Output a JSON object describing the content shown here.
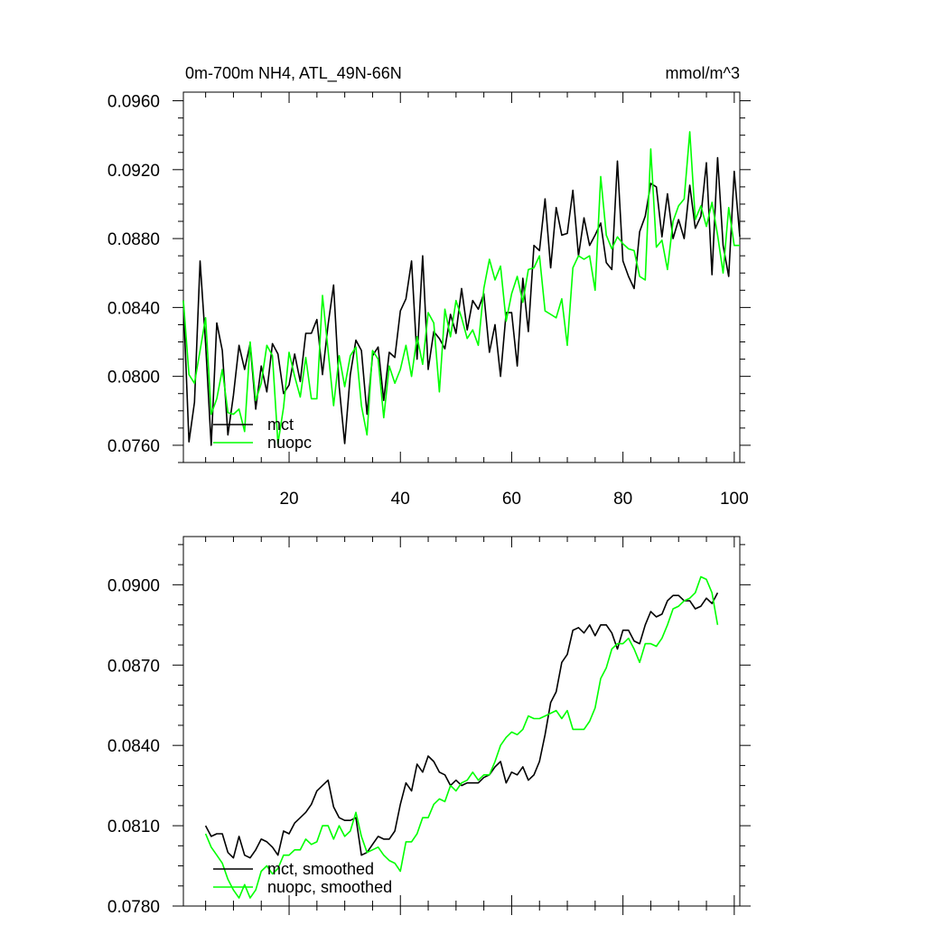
{
  "figure": {
    "title_left": "0m-700m NH4, ATL_49N-66N",
    "title_right": "mmol/m^3"
  },
  "chart_data": [
    {
      "type": "line",
      "name": "raw",
      "xlim": [
        1,
        101
      ],
      "ylim": [
        0.075,
        0.0965
      ],
      "x_major_ticks": [
        20,
        40,
        60,
        80,
        100
      ],
      "x_tick_labels": [
        "20",
        "40",
        "60",
        "80",
        "100"
      ],
      "x_labels_shown": true,
      "y_major_ticks": [
        0.076,
        0.08,
        0.084,
        0.088,
        0.092,
        0.096
      ],
      "y_tick_labels": [
        "0.0760",
        "0.0800",
        "0.0840",
        "0.0880",
        "0.0920",
        "0.0960"
      ],
      "legend_position": "bottom-left",
      "x": [
        1,
        2,
        3,
        4,
        5,
        6,
        7,
        8,
        9,
        10,
        11,
        12,
        13,
        14,
        15,
        16,
        17,
        18,
        19,
        20,
        21,
        22,
        23,
        24,
        25,
        26,
        27,
        28,
        29,
        30,
        31,
        32,
        33,
        34,
        35,
        36,
        37,
        38,
        39,
        40,
        41,
        42,
        43,
        44,
        45,
        46,
        47,
        48,
        49,
        50,
        51,
        52,
        53,
        54,
        55,
        56,
        57,
        58,
        59,
        60,
        61,
        62,
        63,
        64,
        65,
        66,
        67,
        68,
        69,
        70,
        71,
        72,
        73,
        74,
        75,
        76,
        77,
        78,
        79,
        80,
        81,
        82,
        83,
        84,
        85,
        86,
        87,
        88,
        89,
        90,
        91,
        92,
        93,
        94,
        95,
        96,
        97,
        98,
        99,
        100,
        101
      ],
      "series": [
        {
          "name": "mct",
          "color": "#000000",
          "values": [
            0.0844,
            0.0762,
            0.0785,
            0.0867,
            0.0819,
            0.076,
            0.0831,
            0.0815,
            0.0766,
            0.0789,
            0.0818,
            0.0804,
            0.0819,
            0.0781,
            0.0806,
            0.0791,
            0.0819,
            0.0813,
            0.079,
            0.0795,
            0.0813,
            0.0797,
            0.0825,
            0.0825,
            0.0833,
            0.0801,
            0.083,
            0.0853,
            0.0794,
            0.0761,
            0.0801,
            0.0821,
            0.0815,
            0.0778,
            0.0812,
            0.0817,
            0.0786,
            0.0814,
            0.0811,
            0.0838,
            0.0845,
            0.0867,
            0.081,
            0.087,
            0.0804,
            0.0826,
            0.0822,
            0.0816,
            0.0836,
            0.0825,
            0.0851,
            0.0827,
            0.0844,
            0.0839,
            0.0848,
            0.0814,
            0.083,
            0.08,
            0.0837,
            0.0837,
            0.0806,
            0.0857,
            0.0826,
            0.0876,
            0.0873,
            0.0903,
            0.0863,
            0.0898,
            0.0882,
            0.0883,
            0.0908,
            0.087,
            0.0892,
            0.0876,
            0.0882,
            0.0889,
            0.0866,
            0.0862,
            0.0925,
            0.0867,
            0.0858,
            0.0851,
            0.0884,
            0.0893,
            0.0912,
            0.091,
            0.0881,
            0.0906,
            0.088,
            0.0891,
            0.088,
            0.0911,
            0.0886,
            0.0893,
            0.0924,
            0.0859,
            0.0927,
            0.0876,
            0.0858,
            0.0919,
            0.0881
          ]
        },
        {
          "name": "nuopc",
          "color": "#00ff00",
          "values": [
            0.0844,
            0.0801,
            0.0796,
            0.0815,
            0.0834,
            0.0778,
            0.0787,
            0.0804,
            0.0779,
            0.0778,
            0.0781,
            0.0768,
            0.082,
            0.0786,
            0.0796,
            0.0818,
            0.0812,
            0.0761,
            0.0782,
            0.0814,
            0.08,
            0.0788,
            0.0811,
            0.0787,
            0.0787,
            0.0847,
            0.0815,
            0.0783,
            0.0812,
            0.0794,
            0.0812,
            0.0817,
            0.0783,
            0.0766,
            0.0815,
            0.081,
            0.0776,
            0.0806,
            0.0796,
            0.0804,
            0.0818,
            0.08,
            0.0823,
            0.0807,
            0.0837,
            0.0831,
            0.0791,
            0.0839,
            0.0823,
            0.0844,
            0.0834,
            0.0822,
            0.0827,
            0.0818,
            0.0851,
            0.0868,
            0.0856,
            0.0864,
            0.0832,
            0.0848,
            0.0858,
            0.0843,
            0.0862,
            0.0863,
            0.087,
            0.0838,
            0.0836,
            0.0834,
            0.0845,
            0.0818,
            0.0863,
            0.087,
            0.0868,
            0.087,
            0.085,
            0.0916,
            0.0882,
            0.0874,
            0.0881,
            0.0877,
            0.0874,
            0.0873,
            0.0858,
            0.0856,
            0.0932,
            0.0875,
            0.0879,
            0.0862,
            0.089,
            0.0899,
            0.0903,
            0.0942,
            0.0891,
            0.0899,
            0.0887,
            0.0901,
            0.0882,
            0.086,
            0.0898,
            0.0876,
            0.0876
          ]
        }
      ]
    },
    {
      "type": "line",
      "name": "smoothed",
      "xlim": [
        1,
        101
      ],
      "ylim": [
        0.078,
        0.0918
      ],
      "x_major_ticks": [
        20,
        40,
        60,
        80,
        100
      ],
      "x_tick_labels": [],
      "x_labels_shown": false,
      "y_major_ticks": [
        0.078,
        0.081,
        0.084,
        0.087,
        0.09
      ],
      "y_tick_labels": [
        "0.0780",
        "0.0810",
        "0.0840",
        "0.0870",
        "0.0900"
      ],
      "legend_position": "bottom-left",
      "x": [
        5,
        6,
        7,
        8,
        9,
        10,
        11,
        12,
        13,
        14,
        15,
        16,
        17,
        18,
        19,
        20,
        21,
        22,
        23,
        24,
        25,
        26,
        27,
        28,
        29,
        30,
        31,
        32,
        33,
        34,
        35,
        36,
        37,
        38,
        39,
        40,
        41,
        42,
        43,
        44,
        45,
        46,
        47,
        48,
        49,
        50,
        51,
        52,
        53,
        54,
        55,
        56,
        57,
        58,
        59,
        60,
        61,
        62,
        63,
        64,
        65,
        66,
        67,
        68,
        69,
        70,
        71,
        72,
        73,
        74,
        75,
        76,
        77,
        78,
        79,
        80,
        81,
        82,
        83,
        84,
        85,
        86,
        87,
        88,
        89,
        90,
        91,
        92,
        93,
        94,
        95,
        96,
        97
      ],
      "series": [
        {
          "name": "mct, smoothed",
          "color": "#000000",
          "values": [
            0.081,
            0.0806,
            0.0807,
            0.0807,
            0.08,
            0.0798,
            0.0806,
            0.0799,
            0.0798,
            0.0801,
            0.0805,
            0.0804,
            0.0802,
            0.0799,
            0.0808,
            0.0807,
            0.0811,
            0.0813,
            0.0815,
            0.0818,
            0.0823,
            0.0825,
            0.0827,
            0.0817,
            0.0813,
            0.0812,
            0.0812,
            0.0813,
            0.0799,
            0.08,
            0.0803,
            0.0806,
            0.0805,
            0.0805,
            0.0808,
            0.0818,
            0.0826,
            0.0823,
            0.0833,
            0.083,
            0.0836,
            0.0834,
            0.083,
            0.0829,
            0.0825,
            0.0827,
            0.0825,
            0.0826,
            0.0826,
            0.0826,
            0.0828,
            0.0829,
            0.0832,
            0.0834,
            0.0826,
            0.083,
            0.0829,
            0.0832,
            0.0827,
            0.0829,
            0.0834,
            0.0844,
            0.0856,
            0.086,
            0.0871,
            0.0874,
            0.0883,
            0.0884,
            0.0882,
            0.0885,
            0.0881,
            0.0885,
            0.0885,
            0.0882,
            0.0876,
            0.0883,
            0.0883,
            0.0879,
            0.0878,
            0.0885,
            0.089,
            0.0888,
            0.0889,
            0.0894,
            0.0896,
            0.0896,
            0.0894,
            0.0894,
            0.0891,
            0.0892,
            0.0895,
            0.0893,
            0.0897
          ]
        },
        {
          "name": "nuopc, smoothed",
          "color": "#00ff00",
          "values": [
            0.0807,
            0.0802,
            0.0799,
            0.0796,
            0.079,
            0.0786,
            0.0783,
            0.0788,
            0.0783,
            0.0786,
            0.0793,
            0.0795,
            0.0792,
            0.0794,
            0.0799,
            0.0799,
            0.0801,
            0.0801,
            0.0805,
            0.0803,
            0.0804,
            0.081,
            0.081,
            0.0805,
            0.081,
            0.0806,
            0.0808,
            0.0815,
            0.0806,
            0.08,
            0.0801,
            0.0802,
            0.0799,
            0.0797,
            0.0796,
            0.0793,
            0.0804,
            0.0804,
            0.0807,
            0.0813,
            0.0813,
            0.0818,
            0.082,
            0.0819,
            0.0825,
            0.0823,
            0.0826,
            0.0827,
            0.083,
            0.0827,
            0.0829,
            0.0829,
            0.0834,
            0.084,
            0.0843,
            0.0845,
            0.0844,
            0.0846,
            0.0851,
            0.085,
            0.085,
            0.0851,
            0.0852,
            0.0853,
            0.085,
            0.0853,
            0.0846,
            0.0846,
            0.0846,
            0.0849,
            0.0854,
            0.0865,
            0.0869,
            0.0876,
            0.0878,
            0.0878,
            0.088,
            0.0876,
            0.0871,
            0.0878,
            0.0878,
            0.0877,
            0.088,
            0.0885,
            0.0891,
            0.0892,
            0.0894,
            0.0895,
            0.0897,
            0.0903,
            0.0902,
            0.0897,
            0.0885
          ]
        }
      ]
    }
  ]
}
